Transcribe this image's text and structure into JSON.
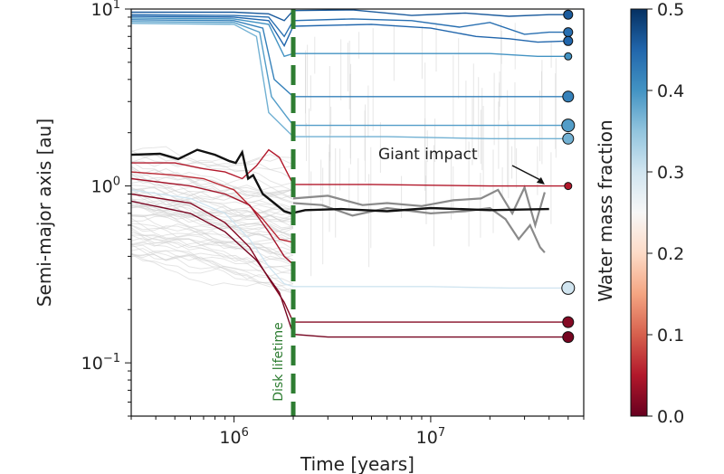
{
  "chart_data": {
    "type": "line",
    "title": "",
    "xlabel": "Time [years]",
    "ylabel": "Semi-major axis [au]",
    "x_scale": "log",
    "y_scale": "log",
    "xlim": [
      300000,
      60000000
    ],
    "ylim": [
      0.05,
      10
    ],
    "x_ticks": [
      {
        "value": 1000000,
        "base": "10",
        "exp": "6"
      },
      {
        "value": 10000000,
        "base": "10",
        "exp": "7"
      }
    ],
    "y_ticks": [
      {
        "value": 0.1,
        "base": "10",
        "exp": "−1"
      },
      {
        "value": 1,
        "base": "10",
        "exp": "0"
      },
      {
        "value": 10,
        "base": "10",
        "exp": "1"
      }
    ],
    "disk_lifetime": {
      "x": 2000000,
      "label": "Disk lifetime",
      "color": "#2e7d32"
    },
    "annotation": {
      "text": "Giant impact",
      "target": [
        38000000,
        1.02
      ]
    },
    "colorbar": {
      "label": "Water mass fraction",
      "min": 0.0,
      "max": 0.5,
      "ticks": [
        "0.0",
        "0.1",
        "0.2",
        "0.3",
        "0.4",
        "0.5"
      ],
      "colors": [
        "#67001f",
        "#b2182b",
        "#d6604d",
        "#f4a582",
        "#fddbc7",
        "#f7f7f7",
        "#d1e5f0",
        "#92c5de",
        "#4393c3",
        "#2166ac",
        "#053061"
      ]
    },
    "highlight_track": {
      "color": "#111111",
      "points": [
        [
          300000,
          1.5
        ],
        [
          420000,
          1.52
        ],
        [
          520000,
          1.42
        ],
        [
          650000,
          1.6
        ],
        [
          800000,
          1.5
        ],
        [
          950000,
          1.38
        ],
        [
          1020000,
          1.35
        ],
        [
          1100000,
          1.55
        ],
        [
          1180000,
          1.1
        ],
        [
          1250000,
          1.15
        ],
        [
          1400000,
          0.9
        ],
        [
          1600000,
          0.8
        ],
        [
          1800000,
          0.72
        ],
        [
          1950000,
          0.7
        ],
        [
          2300000,
          0.73
        ],
        [
          3500000,
          0.74
        ],
        [
          6000000,
          0.72
        ],
        [
          10000000,
          0.75
        ],
        [
          20000000,
          0.73
        ],
        [
          40000000,
          0.74
        ]
      ]
    },
    "gray_tracks": {
      "color": "#8a8a8a",
      "series": [
        [
          [
            2000000,
            0.85
          ],
          [
            3000000,
            0.88
          ],
          [
            4500000,
            0.78
          ],
          [
            6000000,
            0.8
          ],
          [
            9000000,
            0.77
          ],
          [
            13000000,
            0.83
          ],
          [
            18000000,
            0.85
          ],
          [
            22000000,
            0.95
          ],
          [
            26000000,
            0.7
          ],
          [
            30000000,
            0.98
          ],
          [
            34000000,
            0.6
          ],
          [
            38000000,
            0.92
          ]
        ],
        [
          [
            2000000,
            0.8
          ],
          [
            2800000,
            0.78
          ],
          [
            4000000,
            0.68
          ],
          [
            6000000,
            0.75
          ],
          [
            10000000,
            0.7
          ],
          [
            15000000,
            0.72
          ],
          [
            20000000,
            0.75
          ],
          [
            24000000,
            0.65
          ],
          [
            28000000,
            0.5
          ],
          [
            32000000,
            0.6
          ],
          [
            36000000,
            0.45
          ],
          [
            38000000,
            0.42
          ]
        ]
      ]
    },
    "series": [
      {
        "wmf": 0.46,
        "final_size": 5,
        "points": [
          [
            300000,
            9.6
          ],
          [
            1000000,
            9.6
          ],
          [
            1500000,
            9.4
          ],
          [
            1800000,
            8.6
          ],
          [
            2000000,
            9.8
          ],
          [
            4000000,
            9.9
          ],
          [
            8000000,
            9.2
          ],
          [
            15000000,
            9.5
          ],
          [
            25000000,
            9.1
          ],
          [
            40000000,
            9.3
          ],
          [
            50000000,
            9.3
          ]
        ]
      },
      {
        "wmf": 0.44,
        "final_size": 5,
        "points": [
          [
            300000,
            9.3
          ],
          [
            1000000,
            9.2
          ],
          [
            1500000,
            9.0
          ],
          [
            1800000,
            7.0
          ],
          [
            2000000,
            8.6
          ],
          [
            4000000,
            8.8
          ],
          [
            8000000,
            8.6
          ],
          [
            14000000,
            7.9
          ],
          [
            20000000,
            8.4
          ],
          [
            30000000,
            7.2
          ],
          [
            40000000,
            7.4
          ],
          [
            50000000,
            7.4
          ]
        ]
      },
      {
        "wmf": 0.45,
        "final_size": 5,
        "points": [
          [
            300000,
            9.1
          ],
          [
            1000000,
            9.0
          ],
          [
            1500000,
            8.6
          ],
          [
            1800000,
            6.2
          ],
          [
            2000000,
            8.0
          ],
          [
            5000000,
            8.2
          ],
          [
            10000000,
            7.8
          ],
          [
            17000000,
            7.0
          ],
          [
            25000000,
            6.8
          ],
          [
            35000000,
            6.5
          ],
          [
            50000000,
            6.6
          ]
        ]
      },
      {
        "wmf": 0.4,
        "final_size": 4,
        "points": [
          [
            300000,
            8.9
          ],
          [
            1000000,
            8.8
          ],
          [
            1500000,
            8.2
          ],
          [
            1800000,
            5.4
          ],
          [
            2000000,
            5.6
          ],
          [
            6000000,
            5.6
          ],
          [
            20000000,
            5.6
          ],
          [
            35000000,
            5.4
          ],
          [
            50000000,
            5.4
          ]
        ]
      },
      {
        "wmf": 0.42,
        "final_size": 6,
        "points": [
          [
            300000,
            8.7
          ],
          [
            1000000,
            8.6
          ],
          [
            1400000,
            7.8
          ],
          [
            1600000,
            4.0
          ],
          [
            2000000,
            3.2
          ],
          [
            5000000,
            3.2
          ],
          [
            20000000,
            3.2
          ],
          [
            50000000,
            3.2
          ]
        ]
      },
      {
        "wmf": 0.39,
        "final_size": 7,
        "points": [
          [
            300000,
            8.5
          ],
          [
            1000000,
            8.4
          ],
          [
            1350000,
            7.4
          ],
          [
            1550000,
            3.2
          ],
          [
            2000000,
            2.2
          ],
          [
            6000000,
            2.2
          ],
          [
            20000000,
            2.2
          ],
          [
            50000000,
            2.2
          ]
        ]
      },
      {
        "wmf": 0.37,
        "final_size": 6,
        "points": [
          [
            300000,
            8.3
          ],
          [
            1000000,
            8.2
          ],
          [
            1300000,
            7.0
          ],
          [
            1500000,
            2.6
          ],
          [
            2000000,
            1.9
          ],
          [
            6000000,
            1.9
          ],
          [
            20000000,
            1.85
          ],
          [
            50000000,
            1.85
          ]
        ]
      },
      {
        "wmf": 0.05,
        "final_size": 4,
        "points": [
          [
            300000,
            1.35
          ],
          [
            500000,
            1.35
          ],
          [
            700000,
            1.25
          ],
          [
            900000,
            1.2
          ],
          [
            1100000,
            1.1
          ],
          [
            1300000,
            1.3
          ],
          [
            1500000,
            1.6
          ],
          [
            1700000,
            1.45
          ],
          [
            2000000,
            1.02
          ],
          [
            5000000,
            1.02
          ],
          [
            20000000,
            1.0
          ],
          [
            38000000,
            1.0
          ],
          [
            50000000,
            1.0
          ]
        ]
      },
      {
        "wmf": 0.06,
        "final_size": 0,
        "points": [
          [
            300000,
            1.2
          ],
          [
            500000,
            1.15
          ],
          [
            700000,
            1.1
          ],
          [
            1000000,
            0.95
          ],
          [
            1400000,
            0.65
          ],
          [
            1700000,
            0.5
          ],
          [
            2000000,
            0.48
          ]
        ]
      },
      {
        "wmf": 0.04,
        "final_size": 0,
        "points": [
          [
            300000,
            1.1
          ],
          [
            600000,
            1.0
          ],
          [
            900000,
            0.9
          ],
          [
            1200000,
            0.78
          ],
          [
            1500000,
            0.55
          ],
          [
            1800000,
            0.4
          ],
          [
            2000000,
            0.36
          ]
        ]
      },
      {
        "wmf": 0.3,
        "final_size": 7,
        "points": [
          [
            300000,
            0.95
          ],
          [
            600000,
            0.85
          ],
          [
            900000,
            0.7
          ],
          [
            1200000,
            0.5
          ],
          [
            1500000,
            0.35
          ],
          [
            1800000,
            0.28
          ],
          [
            2000000,
            0.27
          ],
          [
            10000000,
            0.27
          ],
          [
            25000000,
            0.265
          ],
          [
            50000000,
            0.265
          ]
        ]
      },
      {
        "wmf": 0.02,
        "final_size": 6,
        "points": [
          [
            300000,
            0.9
          ],
          [
            600000,
            0.8
          ],
          [
            900000,
            0.62
          ],
          [
            1200000,
            0.45
          ],
          [
            1500000,
            0.3
          ],
          [
            1800000,
            0.22
          ],
          [
            2000000,
            0.17
          ],
          [
            20000000,
            0.17
          ],
          [
            50000000,
            0.17
          ]
        ]
      },
      {
        "wmf": 0.01,
        "final_size": 6,
        "points": [
          [
            300000,
            0.82
          ],
          [
            600000,
            0.7
          ],
          [
            900000,
            0.55
          ],
          [
            1300000,
            0.38
          ],
          [
            1700000,
            0.25
          ],
          [
            2000000,
            0.145
          ],
          [
            3000000,
            0.14
          ],
          [
            20000000,
            0.14
          ],
          [
            50000000,
            0.14
          ]
        ]
      }
    ]
  }
}
